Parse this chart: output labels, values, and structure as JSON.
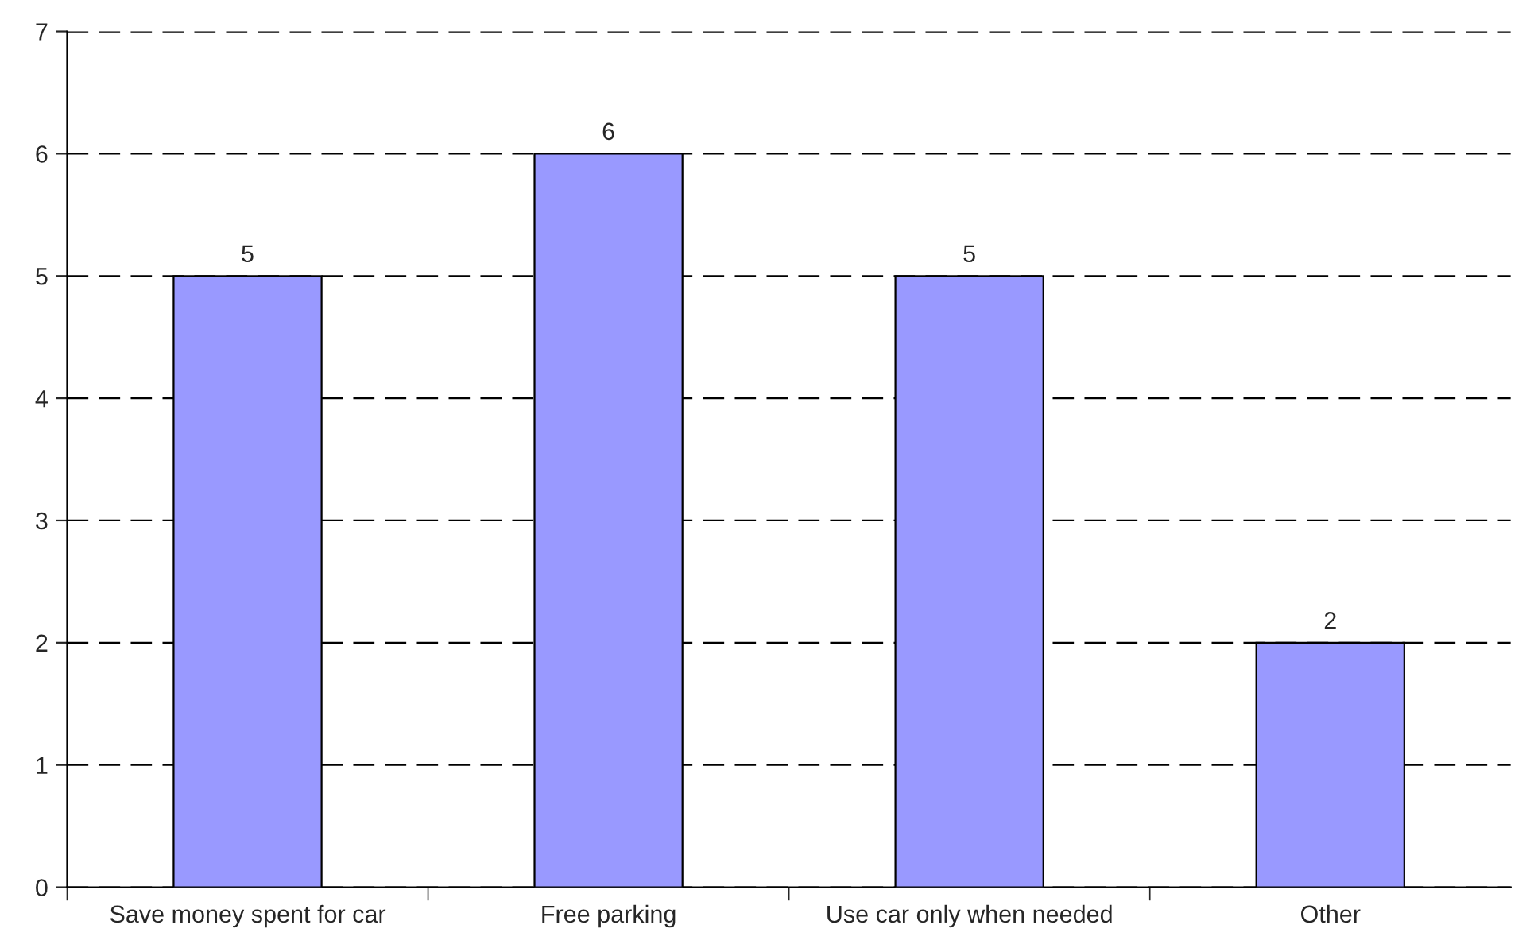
{
  "chart_data": {
    "type": "bar",
    "categories": [
      "Save money spent for car",
      "Free parking",
      "Use car only when needed",
      "Other"
    ],
    "values": [
      5,
      6,
      5,
      2
    ],
    "color": "#9999ff",
    "ylim": [
      0,
      7
    ],
    "yticks": [
      0,
      1,
      2,
      3,
      4,
      5,
      6,
      7
    ],
    "grid": "y",
    "data_labels": true
  }
}
